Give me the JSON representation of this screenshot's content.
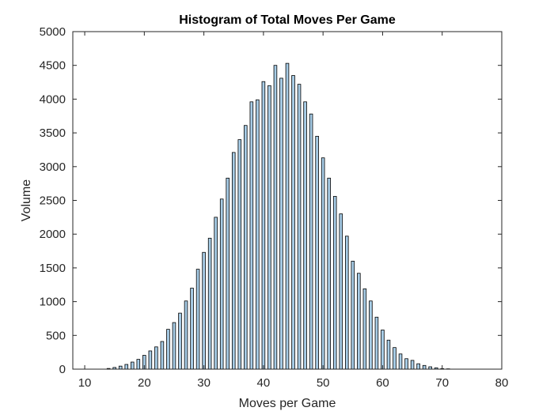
{
  "chart_data": {
    "type": "bar",
    "title": "Histogram of Total Moves Per Game",
    "xlabel": "Moves per Game",
    "ylabel": "Volume",
    "xlim": [
      8,
      80
    ],
    "ylim": [
      0,
      5000
    ],
    "xticks": [
      10,
      20,
      30,
      40,
      50,
      60,
      70,
      80
    ],
    "yticks": [
      0,
      500,
      1000,
      1500,
      2000,
      2500,
      3000,
      3500,
      4000,
      4500,
      5000
    ],
    "grid": false,
    "bar_color": "#a7cce6",
    "edge_color": "#000000",
    "x": [
      10,
      11,
      12,
      13,
      14,
      15,
      16,
      17,
      18,
      19,
      20,
      21,
      22,
      23,
      24,
      25,
      26,
      27,
      28,
      29,
      30,
      31,
      32,
      33,
      34,
      35,
      36,
      37,
      38,
      39,
      40,
      41,
      42,
      43,
      44,
      45,
      46,
      47,
      48,
      49,
      50,
      51,
      52,
      53,
      54,
      55,
      56,
      57,
      58,
      59,
      60,
      61,
      62,
      63,
      64,
      65,
      66,
      67,
      68,
      69,
      70,
      71,
      72,
      73,
      74,
      75,
      76,
      77
    ],
    "values": [
      0,
      0,
      0,
      0,
      10,
      25,
      45,
      70,
      105,
      145,
      205,
      270,
      330,
      410,
      590,
      690,
      830,
      1010,
      1200,
      1480,
      1730,
      1940,
      2250,
      2520,
      2830,
      3210,
      3400,
      3610,
      3960,
      3990,
      4260,
      4200,
      4500,
      4310,
      4530,
      4350,
      4220,
      3960,
      3780,
      3450,
      3130,
      2830,
      2560,
      2300,
      1970,
      1600,
      1420,
      1190,
      1010,
      770,
      580,
      430,
      320,
      225,
      155,
      130,
      80,
      55,
      35,
      20,
      8,
      5,
      0,
      0,
      0,
      0,
      0,
      0
    ]
  }
}
